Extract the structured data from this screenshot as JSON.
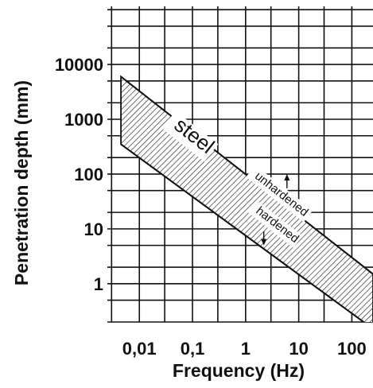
{
  "chart_data": {
    "type": "area",
    "xlabel": "Frequency (Hz)",
    "ylabel": "Penetration depth (mm)",
    "x_scale": "log",
    "y_scale": "log",
    "xlim": [
      0.0025,
      250
    ],
    "ylim": [
      0.2,
      150000
    ],
    "x_ticks": [
      {
        "value": 0.01,
        "label": "0,01"
      },
      {
        "value": 0.1,
        "label": "0,1"
      },
      {
        "value": 1,
        "label": "1"
      },
      {
        "value": 10,
        "label": "10"
      },
      {
        "value": 100,
        "label": "100"
      }
    ],
    "y_ticks": [
      {
        "value": 1,
        "label": "1"
      },
      {
        "value": 10,
        "label": "10"
      },
      {
        "value": 100,
        "label": "100"
      },
      {
        "value": 1000,
        "label": "1000"
      },
      {
        "value": 10000,
        "label": "10000"
      }
    ],
    "grid": true,
    "series": [
      {
        "name": "unhardened",
        "x": [
          0.0045,
          250
        ],
        "y": [
          6000,
          1.5
        ]
      },
      {
        "name": "hardened",
        "x": [
          0.0045,
          250
        ],
        "y": [
          350,
          0.15
        ]
      }
    ],
    "annotations": {
      "band_label": "steel",
      "upper_label": "unhardened",
      "lower_label": "hardened"
    }
  }
}
